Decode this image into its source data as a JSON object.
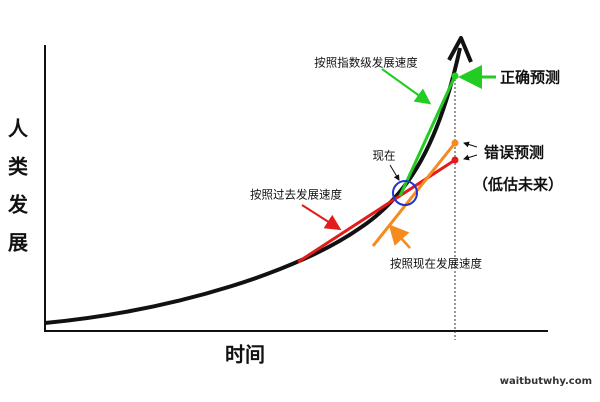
{
  "diagram": {
    "y_axis_label": [
      "人",
      "类",
      "发",
      "展"
    ],
    "x_axis_label": "时间",
    "labels": {
      "exponential": "按照指数级发展速度",
      "correct": "正确预测",
      "now": "现在",
      "wrong": "错误预测",
      "underestimate": "（低估未来）",
      "past_rate": "按照过去发展速度",
      "current_rate": "按照现在发展速度"
    },
    "credit": "waitbutwhy.com"
  }
}
